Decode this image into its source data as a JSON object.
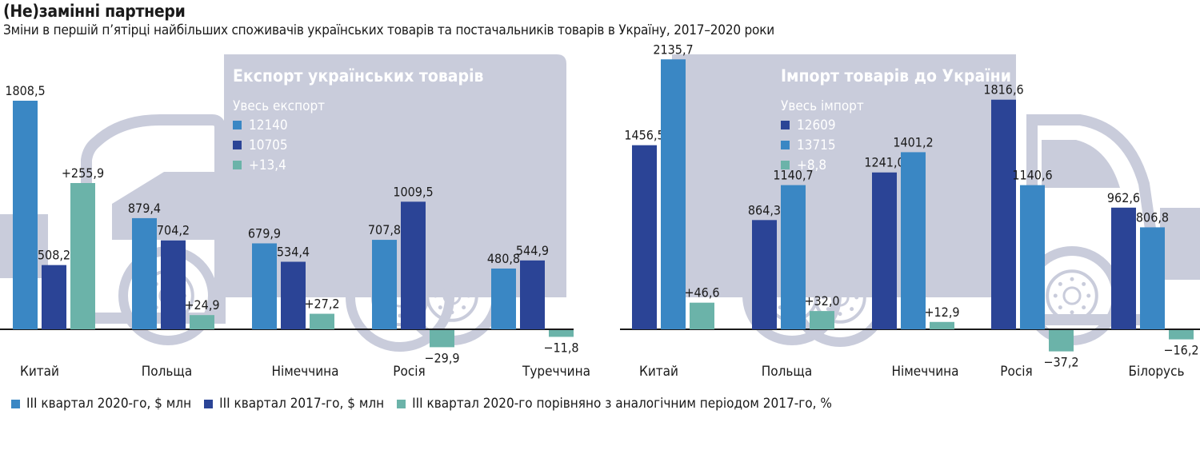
{
  "title": "(Не)замінні партнери",
  "subtitle": "Зміни в першій п’ятірці найбільших споживачів українських товарів та постачальників товарів в Україну, 2017–2020 роки",
  "colors": {
    "q3_2020": "#3a87c4",
    "q3_2017": "#2b4496",
    "change": "#6bb3a9",
    "truck": "#c9ccdb"
  },
  "legend": [
    {
      "label": "ІІІ квартал 2020-го, $ млн",
      "color": "#3a87c4"
    },
    {
      "label": "ІІІ квартал 2017-го, $ млн",
      "color": "#2b4496"
    },
    {
      "label": "ІІІ квартал 2020-го порівняно з аналогічним періодом 2017-го, %",
      "color": "#6bb3a9"
    }
  ],
  "chart_data": [
    {
      "type": "bar",
      "title": "Експорт українських товарів",
      "total_label": "Увесь експорт",
      "totals": [
        {
          "value": "12140",
          "color": "#3a87c4"
        },
        {
          "value": "10705",
          "color": "#2b4496"
        },
        {
          "value": "+13,4",
          "color": "#6bb3a9"
        }
      ],
      "categories": [
        "Китай",
        "Польща",
        "Німеччина",
        "Росія",
        "Туреччина"
      ],
      "series": [
        {
          "name": "ІІІ квартал 2020-го, $ млн",
          "values": [
            1808.5,
            879.4,
            679.9,
            707.8,
            480.8
          ],
          "labels": [
            "1808,5",
            "879,4",
            "679,9",
            "707,8",
            "480,8"
          ]
        },
        {
          "name": "ІІІ квартал 2017-го, $ млн",
          "values": [
            508.2,
            704.2,
            534.4,
            1009.5,
            544.9
          ],
          "labels": [
            "508,2",
            "704,2",
            "534,4",
            "1009,5",
            "544,9"
          ]
        },
        {
          "name": "ІІІ квартал 2020-го порівняно з аналогічним періодом 2017-го, %",
          "values": [
            255.9,
            24.9,
            27.2,
            -29.9,
            -11.8
          ],
          "labels": [
            "+255,9",
            "+24,9",
            "+27,2",
            "−29,9",
            "−11,8"
          ]
        }
      ]
    },
    {
      "type": "bar",
      "title": "Імпорт товарів до України",
      "total_label": "Увесь імпорт",
      "totals": [
        {
          "value": "12609",
          "color": "#2b4496"
        },
        {
          "value": "13715",
          "color": "#3a87c4"
        },
        {
          "value": "+8,8",
          "color": "#6bb3a9"
        }
      ],
      "categories": [
        "Китай",
        "Польща",
        "Німеччина",
        "Росія",
        "Білорусь"
      ],
      "series": [
        {
          "name": "ІІІ квартал 2017-го, $ млн",
          "values": [
            1456.5,
            864.3,
            1241.0,
            1816.6,
            962.6
          ],
          "labels": [
            "1456,5",
            "864,3",
            "1241,0",
            "1816,6",
            "962,6"
          ]
        },
        {
          "name": "ІІІ квартал 2020-го, $ млн",
          "values": [
            2135.7,
            1140.7,
            1401.2,
            1140.6,
            806.8
          ],
          "labels": [
            "2135,7",
            "1140,7",
            "1401,2",
            "1140,6",
            "806,8"
          ]
        },
        {
          "name": "ІІІ квартал 2020-го порівняно з аналогічним періодом 2017-го, %",
          "values": [
            46.6,
            32.0,
            12.9,
            -37.2,
            -16.2
          ],
          "labels": [
            "+46,6",
            "+32,0",
            "+12,9",
            "−37,2",
            "−16,2"
          ]
        }
      ]
    }
  ]
}
